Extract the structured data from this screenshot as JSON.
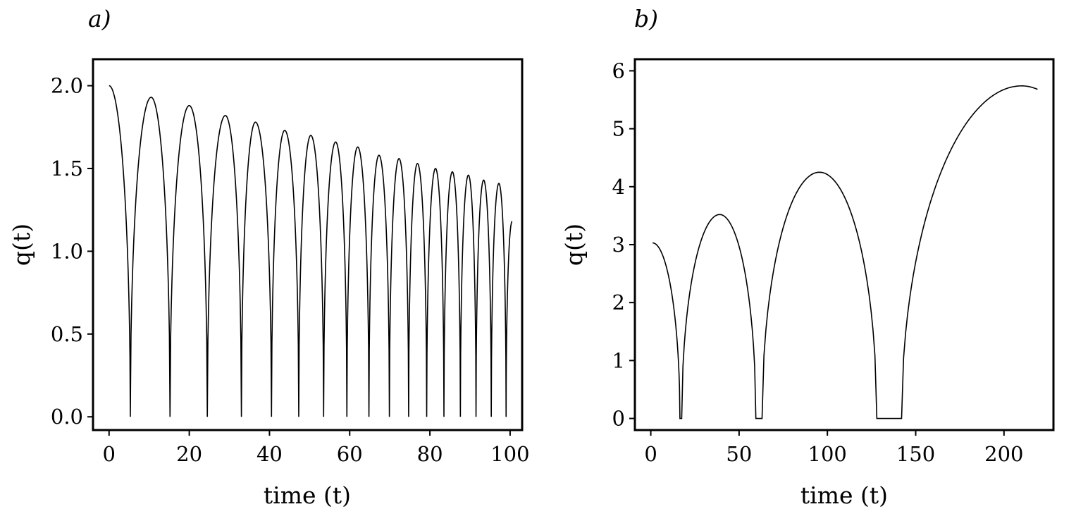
{
  "chart_data": [
    {
      "type": "line",
      "panel_label": "a)",
      "xlabel": "time (t)",
      "ylabel": "q(t)",
      "xlim": [
        -4,
        103
      ],
      "ylim": [
        -0.08,
        2.16
      ],
      "xticks": [
        0,
        20,
        40,
        60,
        80,
        100
      ],
      "yticks": [
        0.0,
        0.5,
        1.0,
        1.5,
        2.0
      ],
      "ytick_labels": [
        "0.0",
        "0.5",
        "1.0",
        "1.5",
        "2.0"
      ],
      "grid": false,
      "start": [
        0,
        2.0
      ],
      "end": [
        100.5,
        1.18
      ],
      "zeros": [
        5.3,
        15.2,
        24.5,
        33.0,
        40.5,
        47.3,
        53.5,
        59.3,
        64.8,
        69.9,
        74.7,
        79.2,
        83.5,
        87.6,
        91.5,
        95.3,
        99.0
      ],
      "peaks": [
        [
          10.5,
          1.93
        ],
        [
          20.0,
          1.88
        ],
        [
          29.0,
          1.82
        ],
        [
          36.5,
          1.78
        ],
        [
          43.8,
          1.73
        ],
        [
          50.3,
          1.7
        ],
        [
          56.5,
          1.66
        ],
        [
          62.0,
          1.63
        ],
        [
          67.3,
          1.58
        ],
        [
          72.3,
          1.56
        ],
        [
          76.9,
          1.53
        ],
        [
          81.4,
          1.5
        ],
        [
          85.6,
          1.48
        ],
        [
          89.6,
          1.46
        ],
        [
          93.4,
          1.43
        ],
        [
          97.2,
          1.41
        ]
      ]
    },
    {
      "type": "line",
      "panel_label": "b)",
      "xlabel": "time (t)",
      "ylabel": "q(t)",
      "xlim": [
        -9,
        228
      ],
      "ylim": [
        -0.2,
        6.2
      ],
      "xticks": [
        0,
        50,
        100,
        150,
        200
      ],
      "yticks": [
        0,
        1,
        2,
        3,
        4,
        5,
        6
      ],
      "ytick_labels": [
        "0",
        "1",
        "2",
        "3",
        "4",
        "5",
        "6"
      ],
      "grid": false,
      "start": [
        1,
        3.03
      ],
      "end": [
        219,
        5.68
      ],
      "zeros": [
        16.5,
        17.5,
        59.5,
        63.0,
        128.0,
        142.0
      ],
      "peaks": [
        [
          39.0,
          3.52
        ],
        [
          95.5,
          4.25
        ],
        [
          210.0,
          5.74
        ]
      ]
    }
  ]
}
